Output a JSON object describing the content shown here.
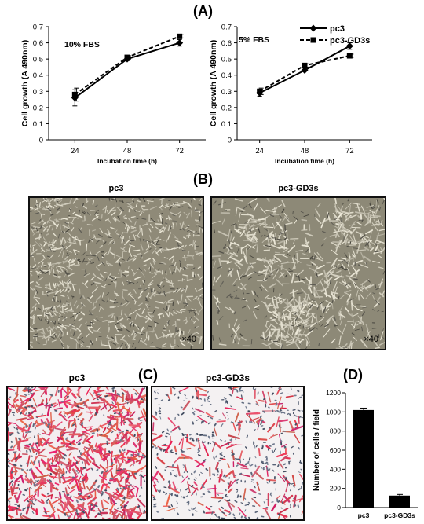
{
  "panels": {
    "A": {
      "letter": "(A)"
    },
    "B": {
      "letter": "(B)",
      "left_label": "pc3",
      "right_label": "pc3-GD3s",
      "magnification": "×40"
    },
    "C": {
      "letter": "(C)",
      "left_label": "pc3",
      "right_label": "pc3-GD3s"
    },
    "D": {
      "letter": "(D)"
    }
  },
  "colors": {
    "line": "#000000",
    "bar": "#000000",
    "stain": "#cc2255",
    "brightfield": "#8f8a78"
  },
  "chart_data": [
    {
      "type": "line",
      "annotation": "10%  FBS",
      "xlabel": "Incubation time (h)",
      "ylabel": "Cell growth (A 490nm)",
      "x": [
        24,
        48,
        72
      ],
      "ylim": [
        0,
        0.7
      ],
      "yticks": [
        0,
        0.1,
        0.2,
        0.3,
        0.4,
        0.5,
        0.6,
        0.7
      ],
      "series": [
        {
          "name": "pc3",
          "values": [
            0.26,
            0.5,
            0.6
          ],
          "errors": [
            0.05,
            0.01,
            0.02
          ],
          "style": "solid",
          "marker": "diamond"
        },
        {
          "name": "pc3-GD3s",
          "values": [
            0.28,
            0.51,
            0.64
          ],
          "errors": [
            0.04,
            0.01,
            0.01
          ],
          "style": "dashed",
          "marker": "square"
        }
      ]
    },
    {
      "type": "line",
      "annotation": "5% FBS",
      "xlabel": "Incubation time (h)",
      "ylabel": "Cell growth (A 490nm)",
      "x": [
        24,
        48,
        72
      ],
      "ylim": [
        0,
        0.7
      ],
      "yticks": [
        0,
        0.1,
        0.2,
        0.3,
        0.4,
        0.5,
        0.6,
        0.7
      ],
      "legend": "top-right",
      "series": [
        {
          "name": "pc3",
          "values": [
            0.29,
            0.43,
            0.58
          ],
          "errors": [
            0.02,
            0.005,
            0.02
          ],
          "style": "solid",
          "marker": "diamond"
        },
        {
          "name": "pc3-GD3s",
          "values": [
            0.3,
            0.46,
            0.52
          ],
          "errors": [
            0.02,
            0.01,
            0.01
          ],
          "style": "dashed",
          "marker": "square"
        }
      ]
    },
    {
      "type": "bar",
      "ylabel": "Number of cells / field",
      "categories": [
        "pc3",
        "pc3-GD3s"
      ],
      "values": [
        1020,
        125
      ],
      "errors": [
        20,
        12
      ],
      "ylim": [
        0,
        1200
      ],
      "yticks": [
        0,
        200,
        400,
        600,
        800,
        1000,
        1200
      ]
    }
  ]
}
